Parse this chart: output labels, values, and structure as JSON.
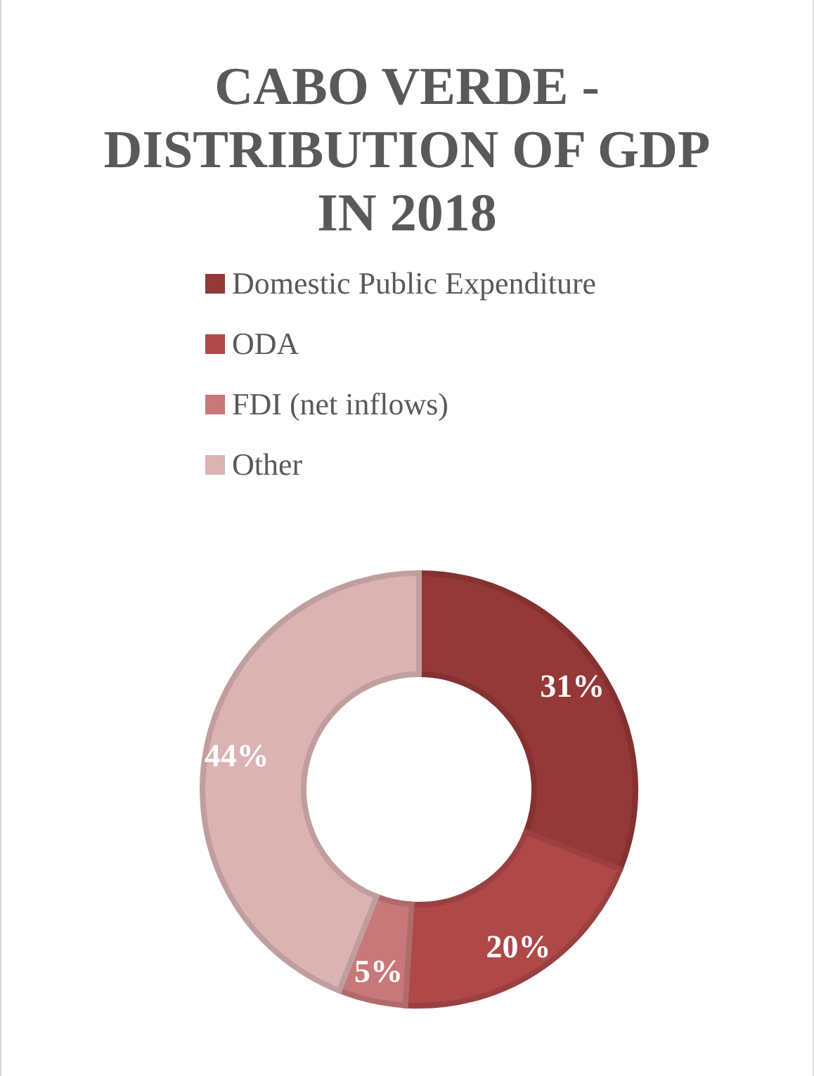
{
  "chart_data": {
    "type": "donut",
    "title": "CABO VERDE - DISTRIBUTION OF GDP IN 2018",
    "categories": [
      "Domestic Public Expenditure",
      "ODA",
      "FDI (net inflows)",
      "Other"
    ],
    "values": [
      31,
      20,
      5,
      44
    ],
    "colors": [
      "#943838",
      "#b04848",
      "#c87878",
      "#dbb3b3"
    ],
    "value_labels": [
      "31%",
      "20%",
      "5%",
      "44%"
    ],
    "legend": "top"
  }
}
